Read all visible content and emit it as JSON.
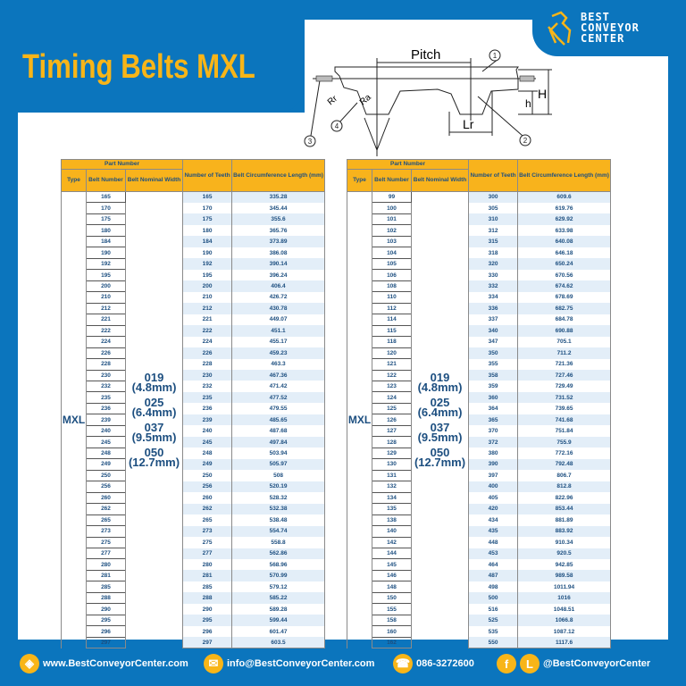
{
  "header": {
    "title": "Timing Belts MXL",
    "logo_lines": [
      "BEST",
      "CONVEYOR",
      "CENTER"
    ]
  },
  "diagram": {
    "pitch": "Pitch",
    "rr": "Rr",
    "ra": "Ra",
    "lr": "Lr",
    "h_small": "h",
    "h_big": "H",
    "callouts": [
      "1",
      "2",
      "3",
      "4"
    ]
  },
  "table_headers": {
    "part_number": "Part Number",
    "type": "Type",
    "belt_number": "Belt Number",
    "belt_width": "Belt Nominal Width",
    "teeth": "Number of Teeth",
    "length": "Belt Circumference Length (mm)"
  },
  "type_value": "MXL",
  "widths": [
    {
      "code": "019",
      "mm": "(4.8mm)"
    },
    {
      "code": "025",
      "mm": "(6.4mm)"
    },
    {
      "code": "037",
      "mm": "(9.5mm)"
    },
    {
      "code": "050",
      "mm": "(12.7mm)"
    }
  ],
  "tables": [
    {
      "rows": [
        [
          "165",
          "165",
          "335.28"
        ],
        [
          "170",
          "170",
          "345.44"
        ],
        [
          "175",
          "175",
          "355.6"
        ],
        [
          "180",
          "180",
          "365.76"
        ],
        [
          "184",
          "184",
          "373.89"
        ],
        [
          "190",
          "190",
          "386.08"
        ],
        [
          "192",
          "192",
          "390.14"
        ],
        [
          "195",
          "195",
          "396.24"
        ],
        [
          "200",
          "200",
          "406.4"
        ],
        [
          "210",
          "210",
          "426.72"
        ],
        [
          "212",
          "212",
          "430.78"
        ],
        [
          "221",
          "221",
          "449.07"
        ],
        [
          "222",
          "222",
          "451.1"
        ],
        [
          "224",
          "224",
          "455.17"
        ],
        [
          "226",
          "226",
          "459.23"
        ],
        [
          "228",
          "228",
          "463.3"
        ],
        [
          "230",
          "230",
          "467.36"
        ],
        [
          "232",
          "232",
          "471.42"
        ],
        [
          "235",
          "235",
          "477.52"
        ],
        [
          "236",
          "236",
          "479.55"
        ],
        [
          "239",
          "239",
          "485.65"
        ],
        [
          "240",
          "240",
          "487.68"
        ],
        [
          "245",
          "245",
          "497.84"
        ],
        [
          "248",
          "248",
          "503.94"
        ],
        [
          "249",
          "249",
          "505.97"
        ],
        [
          "250",
          "250",
          "508"
        ],
        [
          "256",
          "256",
          "520.19"
        ],
        [
          "260",
          "260",
          "528.32"
        ],
        [
          "262",
          "262",
          "532.38"
        ],
        [
          "265",
          "265",
          "538.48"
        ],
        [
          "273",
          "273",
          "554.74"
        ],
        [
          "275",
          "275",
          "558.8"
        ],
        [
          "277",
          "277",
          "562.86"
        ],
        [
          "280",
          "280",
          "568.96"
        ],
        [
          "281",
          "281",
          "570.99"
        ],
        [
          "285",
          "285",
          "579.12"
        ],
        [
          "288",
          "288",
          "585.22"
        ],
        [
          "290",
          "290",
          "589.28"
        ],
        [
          "295",
          "295",
          "599.44"
        ],
        [
          "296",
          "296",
          "601.47"
        ],
        [
          "297",
          "297",
          "603.5"
        ]
      ]
    },
    {
      "rows": [
        [
          "99",
          "300",
          "609.6"
        ],
        [
          "100",
          "305",
          "619.76"
        ],
        [
          "101",
          "310",
          "629.92"
        ],
        [
          "102",
          "312",
          "633.98"
        ],
        [
          "103",
          "315",
          "640.08"
        ],
        [
          "104",
          "318",
          "646.18"
        ],
        [
          "105",
          "320",
          "650.24"
        ],
        [
          "106",
          "330",
          "670.56"
        ],
        [
          "108",
          "332",
          "674.62"
        ],
        [
          "110",
          "334",
          "678.69"
        ],
        [
          "112",
          "336",
          "682.75"
        ],
        [
          "114",
          "337",
          "684.78"
        ],
        [
          "115",
          "340",
          "690.88"
        ],
        [
          "118",
          "347",
          "705.1"
        ],
        [
          "120",
          "350",
          "711.2"
        ],
        [
          "121",
          "355",
          "721.36"
        ],
        [
          "122",
          "358",
          "727.46"
        ],
        [
          "123",
          "359",
          "729.49"
        ],
        [
          "124",
          "360",
          "731.52"
        ],
        [
          "125",
          "364",
          "739.65"
        ],
        [
          "126",
          "365",
          "741.68"
        ],
        [
          "127",
          "370",
          "751.84"
        ],
        [
          "128",
          "372",
          "755.9"
        ],
        [
          "129",
          "380",
          "772.16"
        ],
        [
          "130",
          "390",
          "792.48"
        ],
        [
          "131",
          "397",
          "806.7"
        ],
        [
          "132",
          "400",
          "812.8"
        ],
        [
          "134",
          "405",
          "822.96"
        ],
        [
          "135",
          "420",
          "853.44"
        ],
        [
          "138",
          "434",
          "881.89"
        ],
        [
          "140",
          "435",
          "883.92"
        ],
        [
          "142",
          "448",
          "910.34"
        ],
        [
          "144",
          "453",
          "920.5"
        ],
        [
          "145",
          "464",
          "942.85"
        ],
        [
          "146",
          "487",
          "989.58"
        ],
        [
          "148",
          "498",
          "1011.94"
        ],
        [
          "150",
          "500",
          "1016"
        ],
        [
          "155",
          "516",
          "1048.51"
        ],
        [
          "158",
          "525",
          "1066.8"
        ],
        [
          "160",
          "535",
          "1087.12"
        ],
        [
          "162",
          "550",
          "1117.6"
        ]
      ]
    }
  ],
  "footer": {
    "website": "www.BestConveyorCenter.com",
    "email": "info@BestConveyorCenter.com",
    "phone": "086-3272600",
    "line_letter": "L",
    "facebook_letter": "f",
    "social": "@BestConveyorCenter"
  },
  "colors": {
    "brand_blue": "#0b75bd",
    "accent_yellow": "#f8b518",
    "header_orange": "#f8b31c",
    "text_navy": "#1d4f80",
    "stripe": "#e3eef8"
  }
}
